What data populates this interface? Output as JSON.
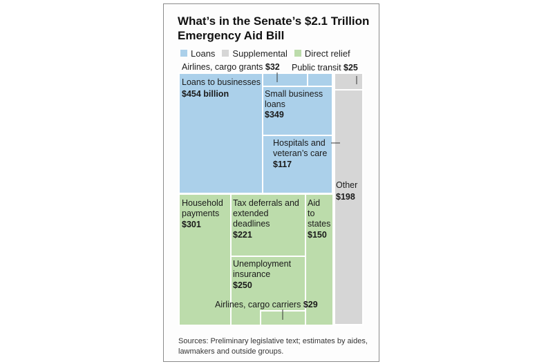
{
  "chart_data": {
    "type": "treemap",
    "title": "What’s in the Senate’s $2.1 Trillion Emergency Aid Bill",
    "unit": "billion dollars",
    "legend": [
      {
        "name": "Loans",
        "color": "#abd0ea"
      },
      {
        "name": "Supplemental",
        "color": "#d6d6d6"
      },
      {
        "name": "Direct relief",
        "color": "#bcdcab"
      }
    ],
    "items": [
      {
        "category": "Loans",
        "label": "Loans to businesses",
        "value": 454,
        "value_label": "$454 billion"
      },
      {
        "category": "Loans",
        "label": "Small business loans",
        "value": 349,
        "value_label": "$349"
      },
      {
        "category": "Loans",
        "label": "Hospitals and veteran’s care",
        "value": 117,
        "value_label": "$117"
      },
      {
        "category": "Loans",
        "label": "Airlines, cargo grants",
        "value": 32,
        "value_label": "$32"
      },
      {
        "category": "Supplemental",
        "label": "Public transit",
        "value": 25,
        "value_label": "$25"
      },
      {
        "category": "Supplemental",
        "label": "Other",
        "value": 198,
        "value_label": "$198"
      },
      {
        "category": "Direct relief",
        "label": "Household payments",
        "value": 301,
        "value_label": "$301"
      },
      {
        "category": "Direct relief",
        "label": "Tax deferrals and extended deadlines",
        "value": 221,
        "value_label": "$221"
      },
      {
        "category": "Direct relief",
        "label": "Aid to states",
        "value": 150,
        "value_label": "$150"
      },
      {
        "category": "Direct relief",
        "label": "Unemployment insurance",
        "value": 250,
        "value_label": "$250"
      },
      {
        "category": "Direct relief",
        "label": "Airlines, cargo carriers",
        "value": 29,
        "value_label": "$29"
      }
    ]
  },
  "legend": {
    "loans": "Loans",
    "supplemental": "Supplemental",
    "direct_relief": "Direct relief"
  },
  "source": "Sources: Preliminary legislative text; estimates by aides, lawmakers and outside groups."
}
